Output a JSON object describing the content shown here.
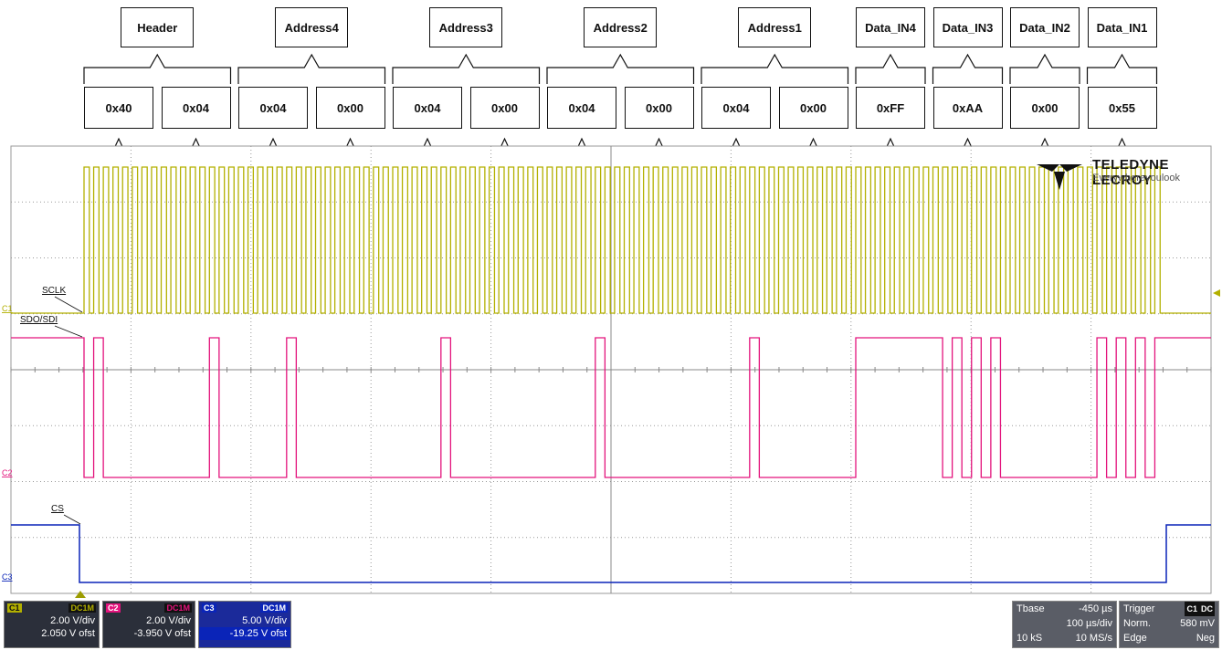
{
  "groups": [
    {
      "label": "Header",
      "span": [
        0,
        2
      ]
    },
    {
      "label": "Address4",
      "span": [
        2,
        4
      ]
    },
    {
      "label": "Address3",
      "span": [
        4,
        6
      ]
    },
    {
      "label": "Address2",
      "span": [
        6,
        8
      ]
    },
    {
      "label": "Address1",
      "span": [
        8,
        10
      ]
    },
    {
      "label": "Data_IN4",
      "span": [
        10,
        11
      ]
    },
    {
      "label": "Data_IN3",
      "span": [
        11,
        12
      ]
    },
    {
      "label": "Data_IN2",
      "span": [
        12,
        13
      ]
    },
    {
      "label": "Data_IN1",
      "span": [
        13,
        14
      ]
    }
  ],
  "bytes": [
    "0x40",
    "0x04",
    "0x04",
    "0x00",
    "0x04",
    "0x00",
    "0x04",
    "0x00",
    "0x04",
    "0x00",
    "0xFF",
    "0xAA",
    "0x00",
    "0x55"
  ],
  "traces": {
    "sclk": {
      "label": "SCLK",
      "marker": "C1",
      "color": "#b3b000"
    },
    "sdo": {
      "label": "SDO/SDI",
      "marker": "C2",
      "color": "#e3137c"
    },
    "cs": {
      "label": "CS",
      "marker": "C3",
      "color": "#0a24b8"
    }
  },
  "logo": {
    "brand": "TELEDYNE LECROY",
    "tagline": "Everywhereyoulook"
  },
  "channels": [
    {
      "name": "C1",
      "coupling": "DC1M",
      "vdiv": "2.00 V/div",
      "offset": "2.050 V ofst",
      "color": "#b3b000"
    },
    {
      "name": "C2",
      "coupling": "DC1M",
      "vdiv": "2.00 V/div",
      "offset": "-3.950 V ofst",
      "color": "#e3137c"
    },
    {
      "name": "C3",
      "coupling": "DC1M",
      "vdiv": "5.00 V/div",
      "offset": "-19.25 V ofst",
      "color": "#0a24b8"
    }
  ],
  "timebase": {
    "label": "Tbase",
    "delay": "-450 µs",
    "tdiv": "100 µs/div",
    "samples": "10 kS",
    "rate": "10 MS/s"
  },
  "trigger": {
    "label": "Trigger",
    "source": "C1",
    "coupling": "DC",
    "mode": "Norm.",
    "level": "580 mV",
    "type": "Edge",
    "slope": "Neg"
  }
}
